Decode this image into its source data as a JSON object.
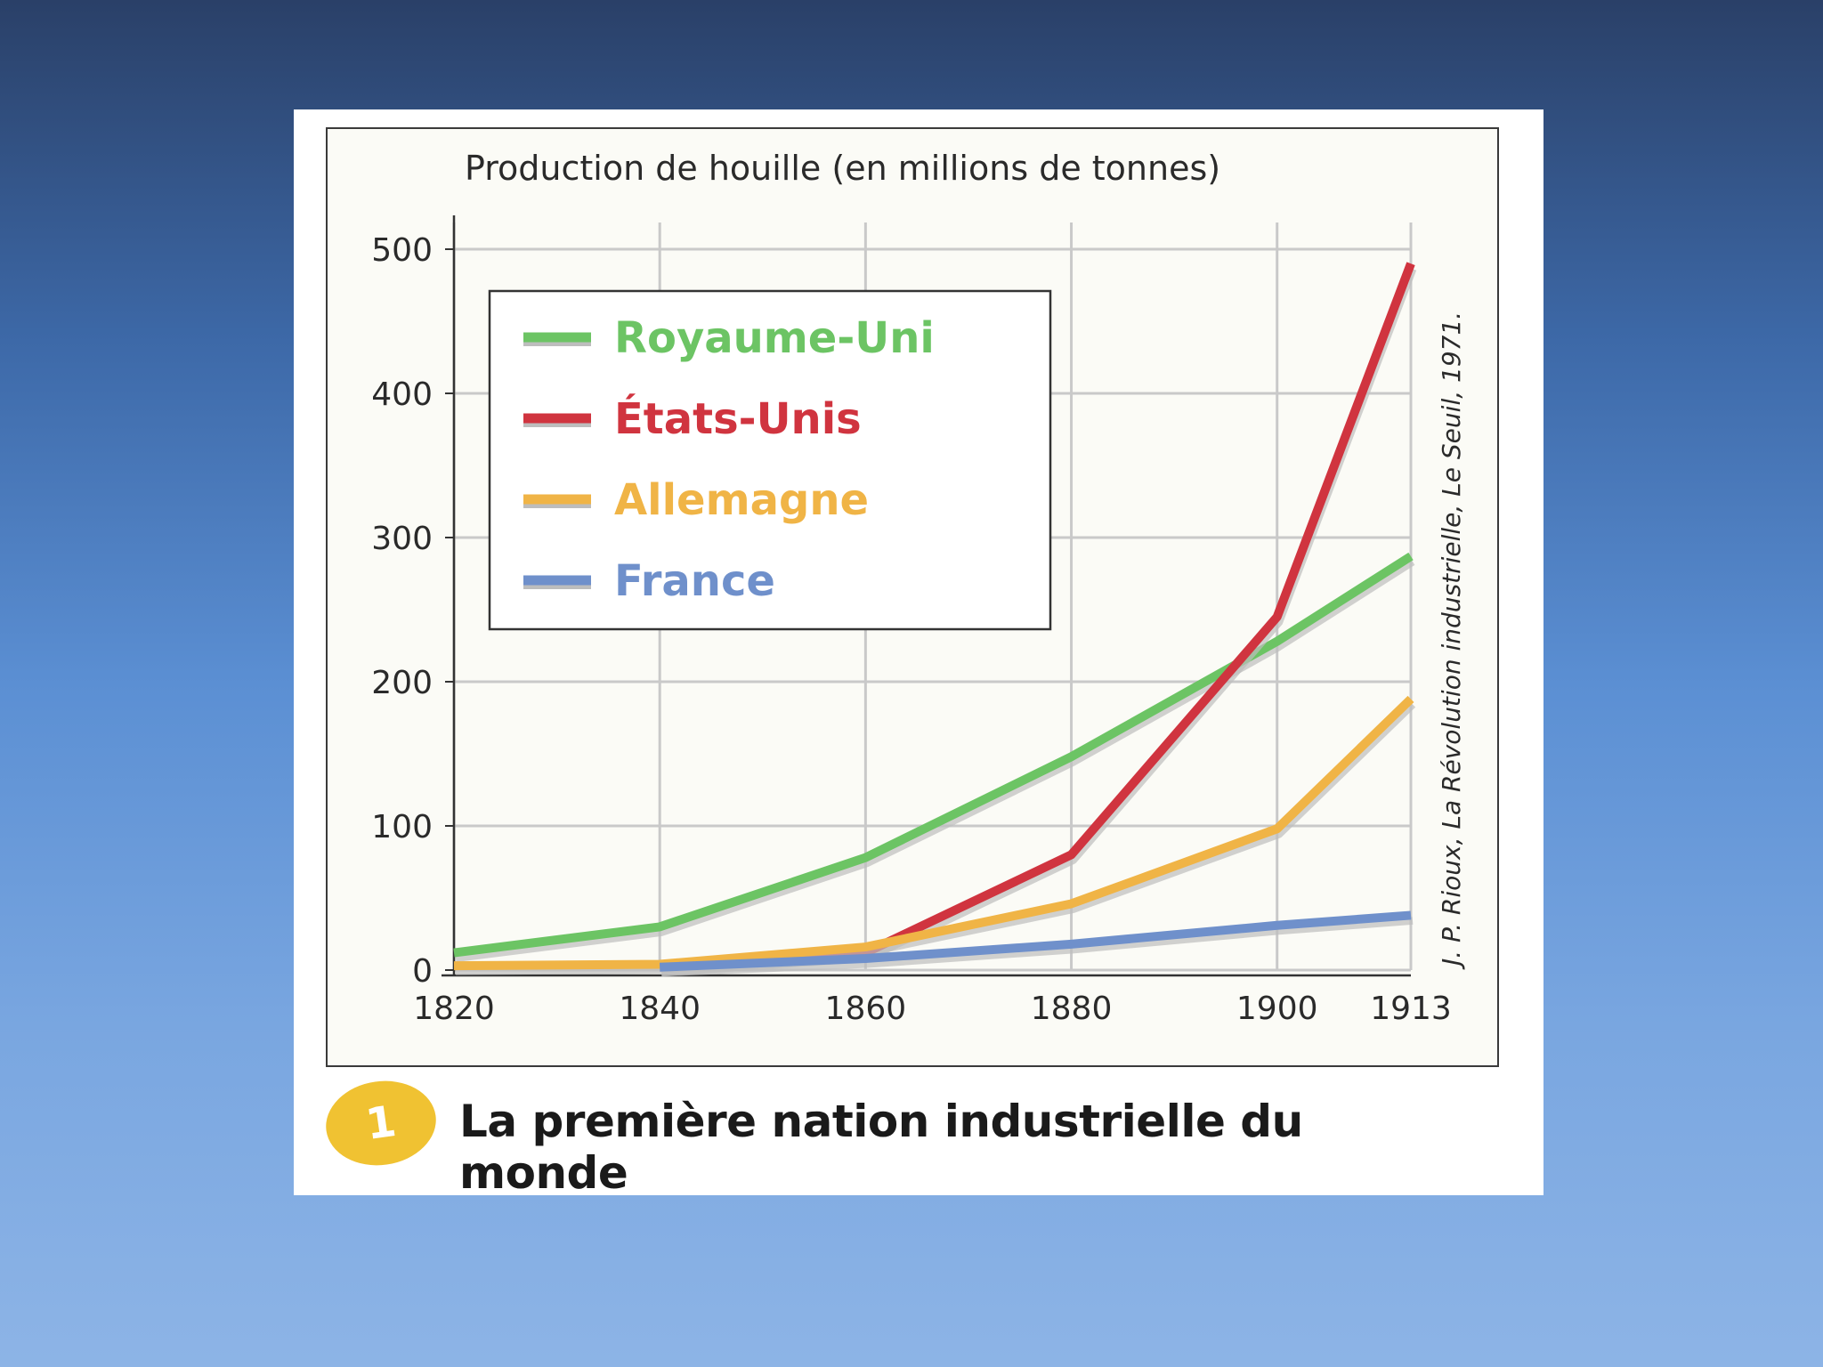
{
  "chart_data": {
    "type": "line",
    "title": "Production de houille (en millions de tonnes)",
    "xlabel": "",
    "ylabel": "",
    "x": [
      1820,
      1840,
      1860,
      1880,
      1900,
      1913
    ],
    "x_tick_labels": [
      "1820",
      "1840",
      "1860",
      "1880",
      "1900",
      "1913"
    ],
    "y_tick_values": [
      0,
      100,
      200,
      300,
      400,
      500
    ],
    "y_tick_labels": [
      "0",
      "100",
      "200",
      "300",
      "400",
      "500"
    ],
    "xlim": [
      1820,
      1913
    ],
    "ylim": [
      0,
      500
    ],
    "grid": true,
    "legend_position": "top-left",
    "series": [
      {
        "name": "Royaume-Uni",
        "color": "#6cc464",
        "points": [
          [
            1820,
            12
          ],
          [
            1840,
            30
          ],
          [
            1860,
            78
          ],
          [
            1880,
            148
          ],
          [
            1900,
            228
          ],
          [
            1913,
            287
          ]
        ]
      },
      {
        "name": "États-Unis",
        "color": "#d0343f",
        "points": [
          [
            1840,
            2
          ],
          [
            1860,
            12
          ],
          [
            1880,
            80
          ],
          [
            1900,
            245
          ],
          [
            1913,
            490
          ]
        ]
      },
      {
        "name": "Allemagne",
        "color": "#f0b446",
        "points": [
          [
            1820,
            3
          ],
          [
            1840,
            4
          ],
          [
            1860,
            16
          ],
          [
            1880,
            46
          ],
          [
            1900,
            98
          ],
          [
            1913,
            188
          ]
        ]
      },
      {
        "name": "France",
        "color": "#6f90cb",
        "points": [
          [
            1840,
            2
          ],
          [
            1860,
            8
          ],
          [
            1880,
            18
          ],
          [
            1900,
            31
          ],
          [
            1913,
            38
          ]
        ]
      }
    ],
    "source_note": "J. P. Rioux, La Révolution industrielle, Le Seuil, 1971."
  },
  "figure": {
    "number": "1",
    "caption": "La première nation industrielle du monde"
  },
  "colors": {
    "badge": "#f0c232",
    "frame_background": "#fbfbf6"
  }
}
